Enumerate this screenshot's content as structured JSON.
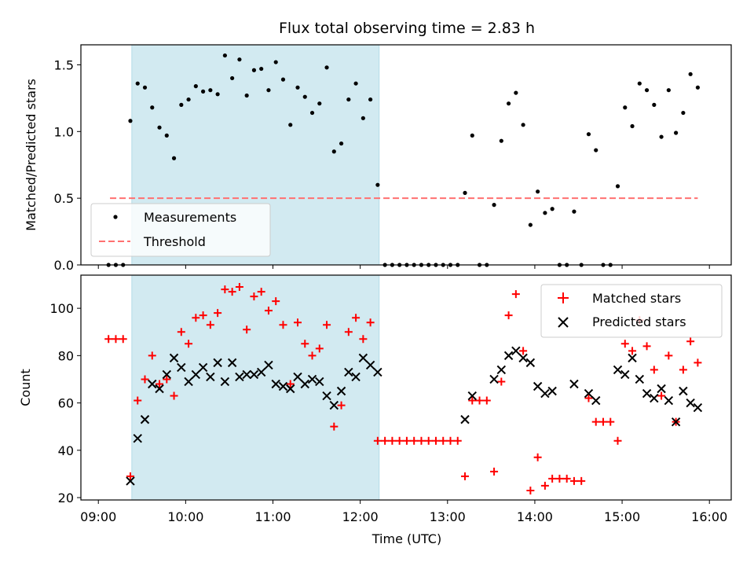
{
  "chart_data": {
    "title": "Flux total observing time = 2.83 h",
    "colors": {
      "shade": "#add8e6",
      "threshold": "#ff7070",
      "matched": "#ff0000",
      "predicted": "#000000",
      "measure": "#000000"
    },
    "shaded_interval": [
      "09:23",
      "12:13"
    ],
    "xlabel": "Time (UTC)",
    "xticks": [
      {
        "h": 9,
        "label": "09:00"
      },
      {
        "h": 10,
        "label": "10:00"
      },
      {
        "h": 11,
        "label": "11:00"
      },
      {
        "h": 12,
        "label": "12:00"
      },
      {
        "h": 13,
        "label": "13:00"
      },
      {
        "h": 14,
        "label": "14:00"
      },
      {
        "h": 15,
        "label": "15:00"
      },
      {
        "h": 16,
        "label": "16:00"
      }
    ],
    "xlim": [
      8.8,
      16.25
    ],
    "top": {
      "type": "scatter",
      "ylabel": "Matched/Predicted stars",
      "ylim": [
        0,
        1.65
      ],
      "yticks": [
        {
          "v": 0,
          "label": "0.0"
        },
        {
          "v": 0.5,
          "label": "0.5"
        },
        {
          "v": 1,
          "label": "1.0"
        },
        {
          "v": 1.5,
          "label": "1.5"
        }
      ],
      "legend": {
        "placement": "lower-left",
        "measurements": "Measurements",
        "threshold": "Threshold"
      },
      "threshold": {
        "value": 0.5,
        "x_range": [
          "09:08",
          "15:52"
        ]
      },
      "measurements": [
        [
          "09:07",
          0
        ],
        [
          "09:12",
          0
        ],
        [
          "09:17",
          0
        ],
        [
          "09:22",
          1.08
        ],
        [
          "09:27",
          1.36
        ],
        [
          "09:32",
          1.33
        ],
        [
          "09:37",
          1.18
        ],
        [
          "09:42",
          1.03
        ],
        [
          "09:47",
          0.97
        ],
        [
          "09:52",
          0.8
        ],
        [
          "09:57",
          1.2
        ],
        [
          "10:02",
          1.24
        ],
        [
          "10:07",
          1.34
        ],
        [
          "10:12",
          1.3
        ],
        [
          "10:17",
          1.31
        ],
        [
          "10:22",
          1.28
        ],
        [
          "10:27",
          1.57
        ],
        [
          "10:32",
          1.4
        ],
        [
          "10:37",
          1.54
        ],
        [
          "10:42",
          1.27
        ],
        [
          "10:47",
          1.46
        ],
        [
          "10:52",
          1.47
        ],
        [
          "10:57",
          1.31
        ],
        [
          "11:02",
          1.52
        ],
        [
          "11:07",
          1.39
        ],
        [
          "11:12",
          1.05
        ],
        [
          "11:17",
          1.33
        ],
        [
          "11:22",
          1.26
        ],
        [
          "11:27",
          1.14
        ],
        [
          "11:32",
          1.21
        ],
        [
          "11:37",
          1.48
        ],
        [
          "11:42",
          0.85
        ],
        [
          "11:47",
          0.91
        ],
        [
          "11:52",
          1.24
        ],
        [
          "11:57",
          1.36
        ],
        [
          "12:02",
          1.1
        ],
        [
          "12:07",
          1.24
        ],
        [
          "12:12",
          0.6
        ],
        [
          "12:17",
          0
        ],
        [
          "12:22",
          0
        ],
        [
          "12:27",
          0
        ],
        [
          "12:32",
          0
        ],
        [
          "12:37",
          0
        ],
        [
          "12:42",
          0
        ],
        [
          "12:47",
          0
        ],
        [
          "12:52",
          0
        ],
        [
          "12:57",
          0
        ],
        [
          "13:02",
          0
        ],
        [
          "13:07",
          0
        ],
        [
          "13:12",
          0.54
        ],
        [
          "13:17",
          0.97
        ],
        [
          "13:22",
          0
        ],
        [
          "13:27",
          0
        ],
        [
          "13:32",
          0.45
        ],
        [
          "13:37",
          0.93
        ],
        [
          "13:42",
          1.21
        ],
        [
          "13:47",
          1.29
        ],
        [
          "13:52",
          1.05
        ],
        [
          "13:57",
          0.3
        ],
        [
          "14:02",
          0.55
        ],
        [
          "14:07",
          0.39
        ],
        [
          "14:12",
          0.42
        ],
        [
          "14:17",
          0
        ],
        [
          "14:22",
          0
        ],
        [
          "14:27",
          0.4
        ],
        [
          "14:32",
          0
        ],
        [
          "14:37",
          0.98
        ],
        [
          "14:42",
          0.86
        ],
        [
          "14:47",
          0
        ],
        [
          "14:52",
          0
        ],
        [
          "14:57",
          0.59
        ],
        [
          "15:02",
          1.18
        ],
        [
          "15:07",
          1.04
        ],
        [
          "15:12",
          1.36
        ],
        [
          "15:17",
          1.31
        ],
        [
          "15:22",
          1.2
        ],
        [
          "15:27",
          0.96
        ],
        [
          "15:32",
          1.31
        ],
        [
          "15:37",
          0.99
        ],
        [
          "15:42",
          1.14
        ],
        [
          "15:47",
          1.43
        ],
        [
          "15:52",
          1.33
        ]
      ]
    },
    "bottom": {
      "type": "scatter",
      "ylabel": "Count",
      "ylim": [
        19,
        114
      ],
      "yticks": [
        {
          "v": 20,
          "label": "20"
        },
        {
          "v": 40,
          "label": "40"
        },
        {
          "v": 60,
          "label": "60"
        },
        {
          "v": 80,
          "label": "80"
        },
        {
          "v": 100,
          "label": "100"
        }
      ],
      "legend": {
        "placement": "top-right",
        "matched": "Matched stars",
        "predicted": "Predicted stars"
      },
      "matched": [
        [
          "09:07",
          87
        ],
        [
          "09:12",
          87
        ],
        [
          "09:17",
          87
        ],
        [
          "09:22",
          29
        ],
        [
          "09:27",
          61
        ],
        [
          "09:32",
          70
        ],
        [
          "09:37",
          80
        ],
        [
          "09:42",
          68
        ],
        [
          "09:47",
          70
        ],
        [
          "09:52",
          63
        ],
        [
          "09:57",
          90
        ],
        [
          "10:02",
          85
        ],
        [
          "10:07",
          96
        ],
        [
          "10:12",
          97
        ],
        [
          "10:17",
          93
        ],
        [
          "10:22",
          98
        ],
        [
          "10:27",
          108
        ],
        [
          "10:32",
          107
        ],
        [
          "10:37",
          109
        ],
        [
          "10:42",
          91
        ],
        [
          "10:47",
          105
        ],
        [
          "10:52",
          107
        ],
        [
          "10:57",
          99
        ],
        [
          "11:02",
          103
        ],
        [
          "11:07",
          93
        ],
        [
          "11:12",
          68
        ],
        [
          "11:17",
          94
        ],
        [
          "11:22",
          85
        ],
        [
          "11:27",
          80
        ],
        [
          "11:32",
          83
        ],
        [
          "11:37",
          93
        ],
        [
          "11:42",
          50
        ],
        [
          "11:47",
          59
        ],
        [
          "11:52",
          90
        ],
        [
          "11:57",
          96
        ],
        [
          "12:02",
          87
        ],
        [
          "12:07",
          94
        ],
        [
          "12:12",
          44
        ],
        [
          "12:17",
          44
        ],
        [
          "12:22",
          44
        ],
        [
          "12:27",
          44
        ],
        [
          "12:32",
          44
        ],
        [
          "12:37",
          44
        ],
        [
          "12:42",
          44
        ],
        [
          "12:47",
          44
        ],
        [
          "12:52",
          44
        ],
        [
          "12:57",
          44
        ],
        [
          "13:02",
          44
        ],
        [
          "13:07",
          44
        ],
        [
          "13:12",
          29
        ],
        [
          "13:17",
          61
        ],
        [
          "13:22",
          61
        ],
        [
          "13:27",
          61
        ],
        [
          "13:32",
          31
        ],
        [
          "13:37",
          69
        ],
        [
          "13:42",
          97
        ],
        [
          "13:47",
          106
        ],
        [
          "13:52",
          82
        ],
        [
          "13:57",
          23
        ],
        [
          "14:02",
          37
        ],
        [
          "14:07",
          25
        ],
        [
          "14:12",
          28
        ],
        [
          "14:17",
          28
        ],
        [
          "14:22",
          28
        ],
        [
          "14:27",
          27
        ],
        [
          "14:32",
          27
        ],
        [
          "14:37",
          62
        ],
        [
          "14:42",
          52
        ],
        [
          "14:47",
          52
        ],
        [
          "14:52",
          52
        ],
        [
          "14:57",
          44
        ],
        [
          "15:02",
          85
        ],
        [
          "15:07",
          82
        ],
        [
          "15:12",
          95
        ],
        [
          "15:17",
          84
        ],
        [
          "15:22",
          74
        ],
        [
          "15:27",
          63
        ],
        [
          "15:32",
          80
        ],
        [
          "15:37",
          52
        ],
        [
          "15:42",
          74
        ],
        [
          "15:47",
          86
        ],
        [
          "15:52",
          77
        ]
      ],
      "predicted": [
        [
          "09:22",
          27
        ],
        [
          "09:27",
          45
        ],
        [
          "09:32",
          53
        ],
        [
          "09:37",
          68
        ],
        [
          "09:42",
          66
        ],
        [
          "09:47",
          72
        ],
        [
          "09:52",
          79
        ],
        [
          "09:57",
          75
        ],
        [
          "10:02",
          69
        ],
        [
          "10:07",
          72
        ],
        [
          "10:12",
          75
        ],
        [
          "10:17",
          71
        ],
        [
          "10:22",
          77
        ],
        [
          "10:27",
          69
        ],
        [
          "10:32",
          77
        ],
        [
          "10:37",
          71
        ],
        [
          "10:42",
          72
        ],
        [
          "10:47",
          72
        ],
        [
          "10:52",
          73
        ],
        [
          "10:57",
          76
        ],
        [
          "11:02",
          68
        ],
        [
          "11:07",
          67
        ],
        [
          "11:12",
          66
        ],
        [
          "11:17",
          71
        ],
        [
          "11:22",
          68
        ],
        [
          "11:27",
          70
        ],
        [
          "11:32",
          69
        ],
        [
          "11:37",
          63
        ],
        [
          "11:42",
          59
        ],
        [
          "11:47",
          65
        ],
        [
          "11:52",
          73
        ],
        [
          "11:57",
          71
        ],
        [
          "12:02",
          79
        ],
        [
          "12:07",
          76
        ],
        [
          "12:12",
          73
        ],
        [
          "13:12",
          53
        ],
        [
          "13:17",
          63
        ],
        [
          "13:32",
          70
        ],
        [
          "13:37",
          74
        ],
        [
          "13:42",
          80
        ],
        [
          "13:47",
          82
        ],
        [
          "13:52",
          79
        ],
        [
          "13:57",
          77
        ],
        [
          "14:02",
          67
        ],
        [
          "14:07",
          64
        ],
        [
          "14:12",
          65
        ],
        [
          "14:27",
          68
        ],
        [
          "14:37",
          64
        ],
        [
          "14:42",
          61
        ],
        [
          "14:57",
          74
        ],
        [
          "15:02",
          72
        ],
        [
          "15:07",
          79
        ],
        [
          "15:12",
          70
        ],
        [
          "15:17",
          64
        ],
        [
          "15:22",
          62
        ],
        [
          "15:27",
          66
        ],
        [
          "15:32",
          61
        ],
        [
          "15:37",
          52
        ],
        [
          "15:42",
          65
        ],
        [
          "15:47",
          60
        ],
        [
          "15:52",
          58
        ]
      ]
    }
  }
}
